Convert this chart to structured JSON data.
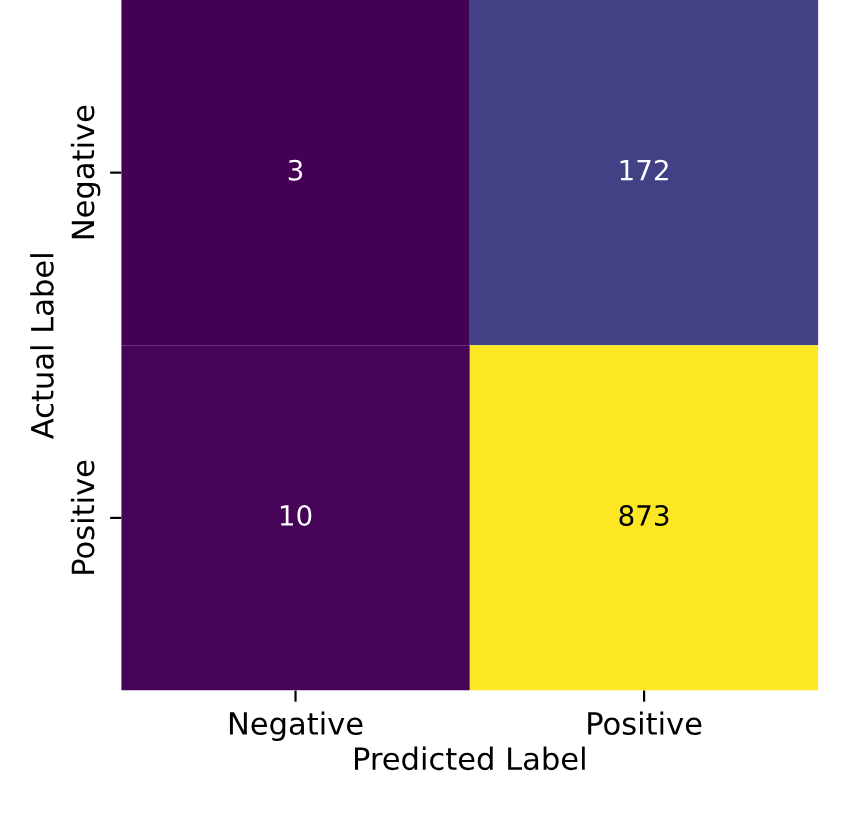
{
  "chart_data": {
    "type": "heatmap",
    "xlabel": "Predicted Label",
    "ylabel": "Actual Label",
    "categories": [
      "Negative",
      "Positive"
    ],
    "y_categories": [
      "Negative",
      "Positive"
    ],
    "cells": [
      [
        3,
        172
      ],
      [
        10,
        873
      ]
    ],
    "data_labels": true
  }
}
